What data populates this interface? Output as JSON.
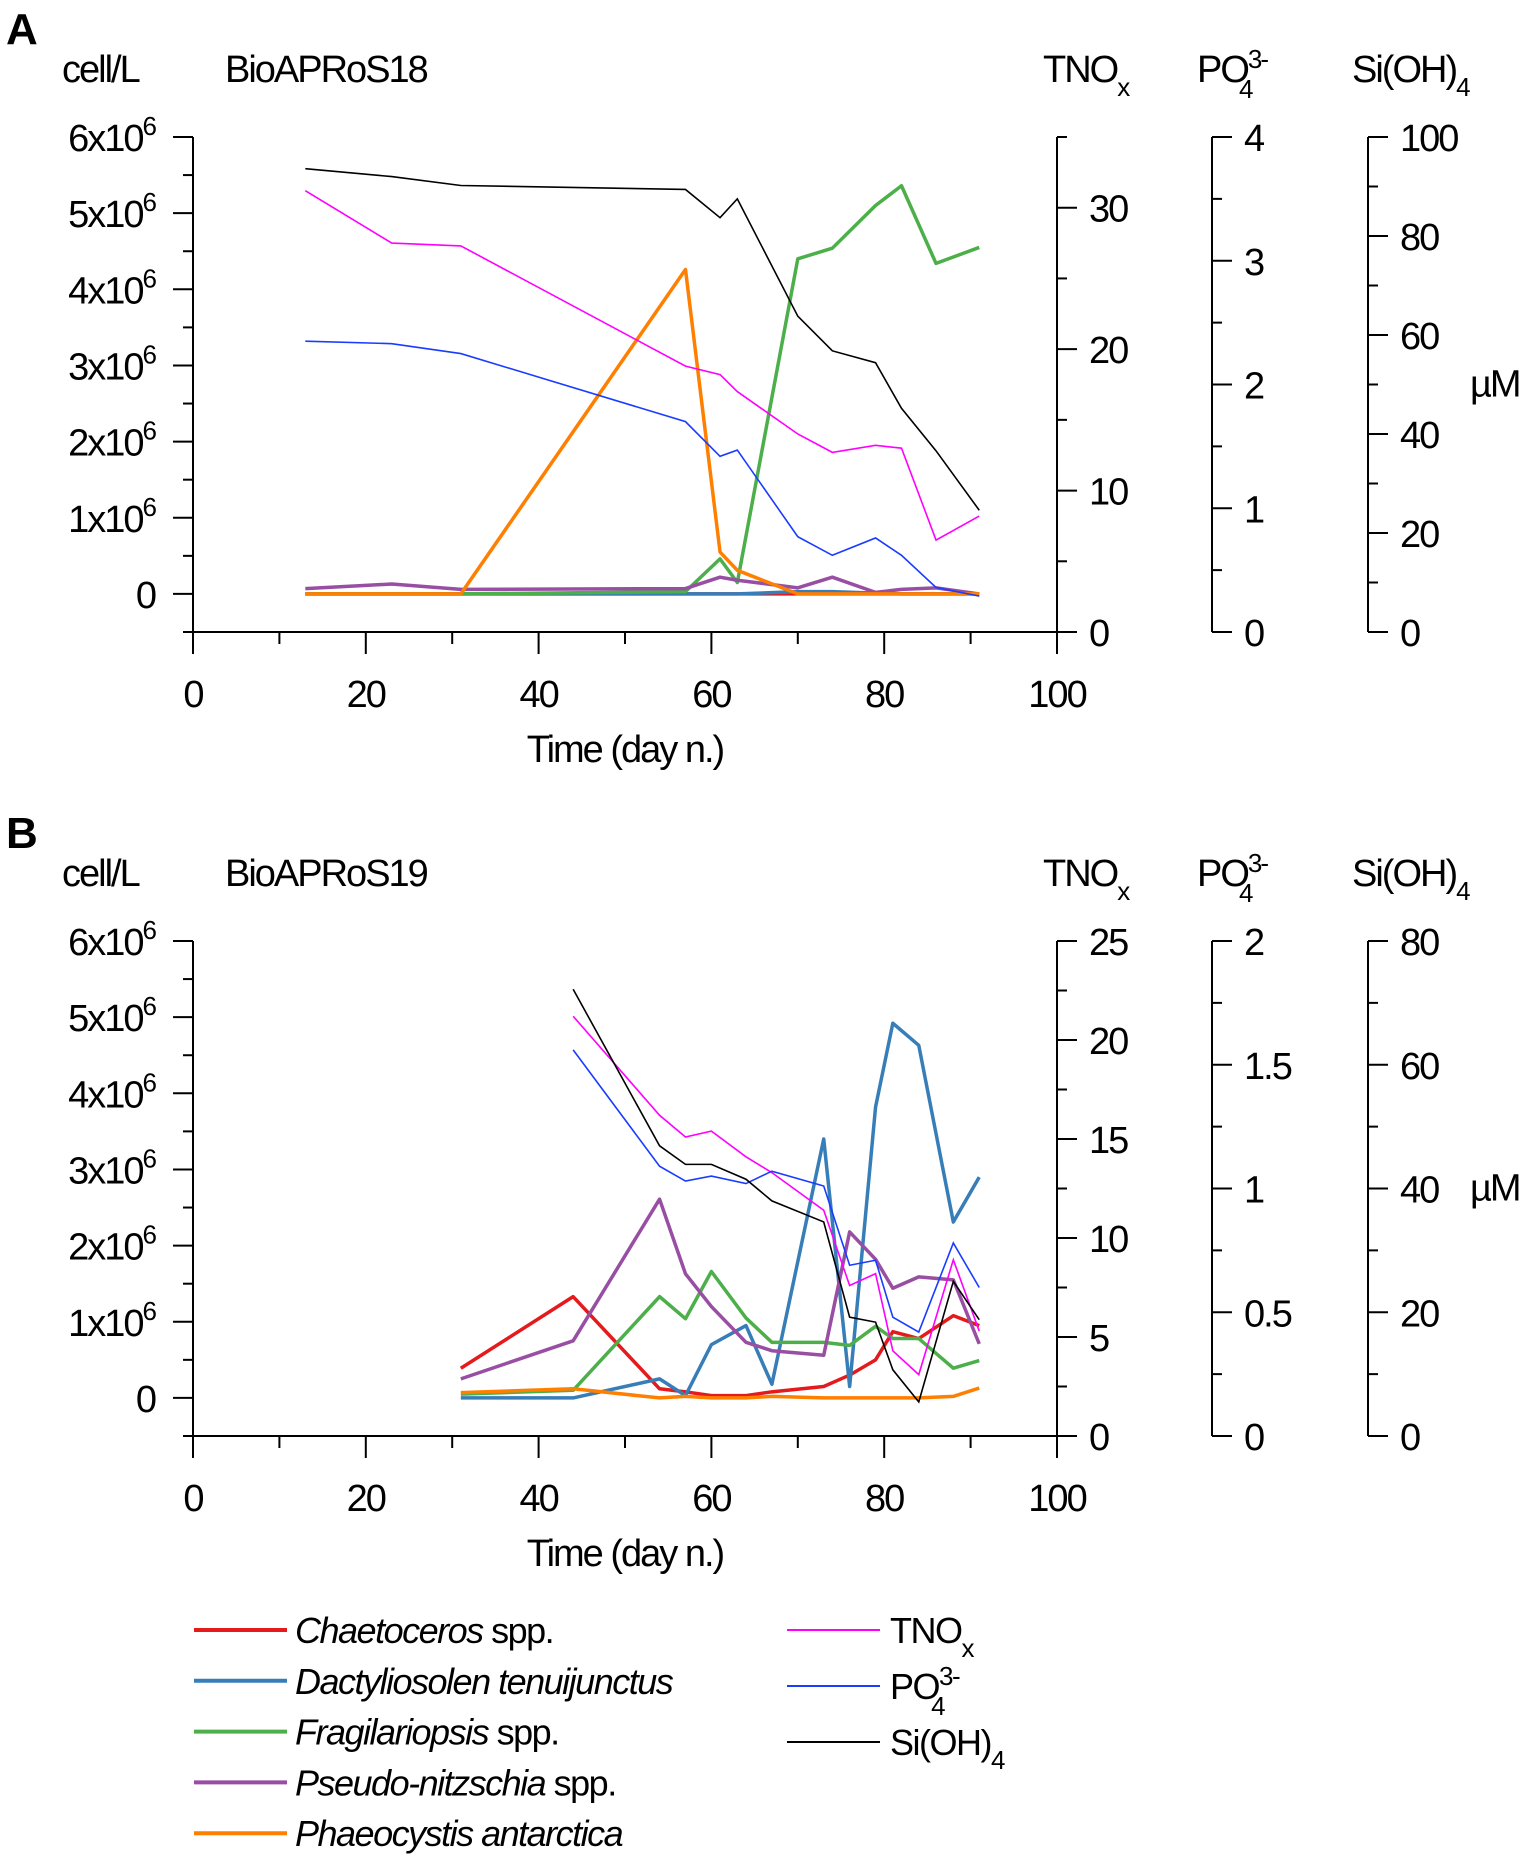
{
  "legend": {
    "species": [
      {
        "name_italic": "Chaetoceros",
        "name_rest": " spp.",
        "color": "#e41a1c"
      },
      {
        "name_italic": "Dactyliosolen tenuijunctus",
        "name_rest": "",
        "color": "#377eb8"
      },
      {
        "name_italic": "Fragilariopsis",
        "name_rest": " spp.",
        "color": "#4daf4a"
      },
      {
        "name_italic": "Pseudo-nitzschia",
        "name_rest": " spp.",
        "color": "#984ea3"
      },
      {
        "name_italic": "Phaeocystis antarctica",
        "name_rest": "",
        "color": "#ff7f00"
      }
    ],
    "nutrients": [
      {
        "base": "TNO",
        "sub": "x",
        "sup": "",
        "color": "#ff00ff"
      },
      {
        "base": "PO",
        "sub": "4",
        "sup": "3-",
        "color": "#1a3cff"
      },
      {
        "base": "Si(OH)",
        "sub": "4",
        "sup": "",
        "color": "#000000"
      }
    ]
  },
  "chart_data": [
    {
      "panel": "A",
      "type": "line",
      "title": "BioAPRoS18",
      "xlabel": "Time (day n.)",
      "xlim": [
        0,
        100
      ],
      "xticks": [
        0,
        20,
        40,
        60,
        80,
        100
      ],
      "left_axis": {
        "label": "cell/L",
        "ylim": [
          -500000,
          6000000
        ],
        "ticks": [
          0,
          1,
          2,
          3,
          4,
          5,
          6
        ],
        "tick_format": "x10^6"
      },
      "right_axes": [
        {
          "label": {
            "base": "TNO",
            "sub": "x",
            "sup": ""
          },
          "ylim": [
            0,
            35
          ],
          "ticks": [
            0,
            10,
            20,
            30
          ],
          "minor": 5
        },
        {
          "label": {
            "base": "PO",
            "sub": "4",
            "sup": "3-"
          },
          "ylim": [
            0,
            4
          ],
          "ticks": [
            0,
            1,
            2,
            3,
            4
          ],
          "minor": 0.5
        },
        {
          "label": {
            "base": "Si(OH)",
            "sub": "4",
            "sup": ""
          },
          "ylim": [
            0,
            100
          ],
          "ticks": [
            0,
            20,
            40,
            60,
            80,
            100
          ],
          "minor": 10
        }
      ],
      "unit_label": "µM",
      "x": [
        13,
        23,
        31,
        57,
        61,
        63,
        70,
        74,
        79,
        82,
        86,
        91
      ],
      "species": [
        {
          "name": "Chaetoceros spp.",
          "values": [
            0,
            0,
            0,
            0,
            0,
            0,
            0,
            0,
            0,
            0,
            0,
            0
          ]
        },
        {
          "name": "Dactyliosolen tenuijunctus",
          "values": [
            0,
            0,
            0,
            0,
            0,
            0,
            30000,
            30000,
            10000,
            0,
            0,
            0
          ]
        },
        {
          "name": "Fragilariopsis spp.",
          "values": [
            0,
            0,
            0,
            30000,
            460000,
            150000,
            4400000,
            4540000,
            5100000,
            5360000,
            4340000,
            4550000
          ]
        },
        {
          "name": "Pseudo-nitzschia spp.",
          "values": [
            70000,
            130000,
            60000,
            70000,
            220000,
            180000,
            80000,
            220000,
            20000,
            60000,
            80000,
            0
          ]
        },
        {
          "name": "Phaeocystis antarctica",
          "values": [
            0,
            0,
            0,
            4260000,
            550000,
            310000,
            0,
            0,
            0,
            0,
            0,
            0
          ]
        }
      ],
      "nutrients": [
        {
          "name": "TNOx",
          "axis": 0,
          "values": [
            31.2,
            27.5,
            27.3,
            18.8,
            18.2,
            17.0,
            14.0,
            12.7,
            13.2,
            13.0,
            6.5,
            8.2
          ]
        },
        {
          "name": "PO4 3-",
          "axis": 1,
          "values": [
            2.35,
            2.33,
            2.25,
            1.7,
            1.42,
            1.47,
            0.77,
            0.62,
            0.76,
            0.62,
            0.36,
            0.29
          ]
        },
        {
          "name": "Si(OH)4",
          "axis": 2,
          "values": [
            93.6,
            92.0,
            90.2,
            89.4,
            83.7,
            87.5,
            63.8,
            56.8,
            54.4,
            45.2,
            36.6,
            24.6
          ]
        }
      ]
    },
    {
      "panel": "B",
      "type": "line",
      "title": "BioAPRoS19",
      "xlabel": "Time (day n.)",
      "xlim": [
        0,
        100
      ],
      "xticks": [
        0,
        20,
        40,
        60,
        80,
        100
      ],
      "left_axis": {
        "label": "cell/L",
        "ylim": [
          -500000,
          6000000
        ],
        "ticks": [
          0,
          1,
          2,
          3,
          4,
          5,
          6
        ],
        "tick_format": "x10^6"
      },
      "right_axes": [
        {
          "label": {
            "base": "TNO",
            "sub": "x",
            "sup": ""
          },
          "ylim": [
            0,
            25
          ],
          "ticks": [
            0,
            5,
            10,
            15,
            20,
            25
          ],
          "minor": 2.5
        },
        {
          "label": {
            "base": "PO",
            "sub": "4",
            "sup": "3-"
          },
          "ylim": [
            0,
            2
          ],
          "ticks": [
            0,
            0.5,
            1,
            1.5,
            2
          ],
          "minor": 0.25
        },
        {
          "label": {
            "base": "Si(OH)",
            "sub": "4",
            "sup": ""
          },
          "ylim": [
            0,
            80
          ],
          "ticks": [
            0,
            20,
            40,
            60,
            80
          ],
          "minor": 10
        }
      ],
      "unit_label": "µM",
      "x": [
        31,
        44,
        54,
        57,
        60,
        64,
        67,
        73,
        76,
        79,
        81,
        84,
        88,
        91
      ],
      "species": [
        {
          "name": "Chaetoceros spp.",
          "values": [
            390000,
            1330000,
            120000,
            80000,
            30000,
            30000,
            80000,
            150000,
            300000,
            500000,
            870000,
            780000,
            1080000,
            950000
          ]
        },
        {
          "name": "Dactyliosolen tenuijunctus",
          "values": [
            0,
            0,
            250000,
            30000,
            700000,
            950000,
            180000,
            3400000,
            150000,
            3820000,
            4920000,
            4630000,
            2310000,
            2900000
          ]
        },
        {
          "name": "Fragilariopsis spp.",
          "values": [
            50000,
            100000,
            1330000,
            1040000,
            1660000,
            1050000,
            730000,
            730000,
            690000,
            940000,
            780000,
            780000,
            390000,
            490000
          ]
        },
        {
          "name": "Pseudo-nitzschia spp.",
          "values": [
            250000,
            750000,
            2610000,
            1630000,
            1200000,
            730000,
            620000,
            560000,
            2180000,
            1820000,
            1440000,
            1590000,
            1550000,
            710000
          ]
        },
        {
          "name": "Phaeocystis antarctica",
          "values": [
            70000,
            120000,
            0,
            20000,
            0,
            0,
            20000,
            0,
            0,
            0,
            0,
            0,
            20000,
            130000
          ]
        }
      ],
      "nutrients": [
        {
          "name": "TNOx",
          "axis": 0,
          "values": [
            null,
            21.2,
            16.2,
            15.1,
            15.4,
            14.1,
            13.3,
            11.4,
            7.6,
            8.2,
            4.3,
            3.1,
            8.9,
            5.3
          ]
        },
        {
          "name": "PO4 3-",
          "axis": 1,
          "values": [
            null,
            1.56,
            1.09,
            1.03,
            1.05,
            1.02,
            1.07,
            1.01,
            0.69,
            0.71,
            0.48,
            0.42,
            0.78,
            0.6
          ]
        },
        {
          "name": "Si(OH)4",
          "axis": 2,
          "values": [
            null,
            72.2,
            46.9,
            43.9,
            43.9,
            41.5,
            38.0,
            34.6,
            19.2,
            18.4,
            10.7,
            5.5,
            25.0,
            18.8
          ]
        }
      ]
    }
  ]
}
